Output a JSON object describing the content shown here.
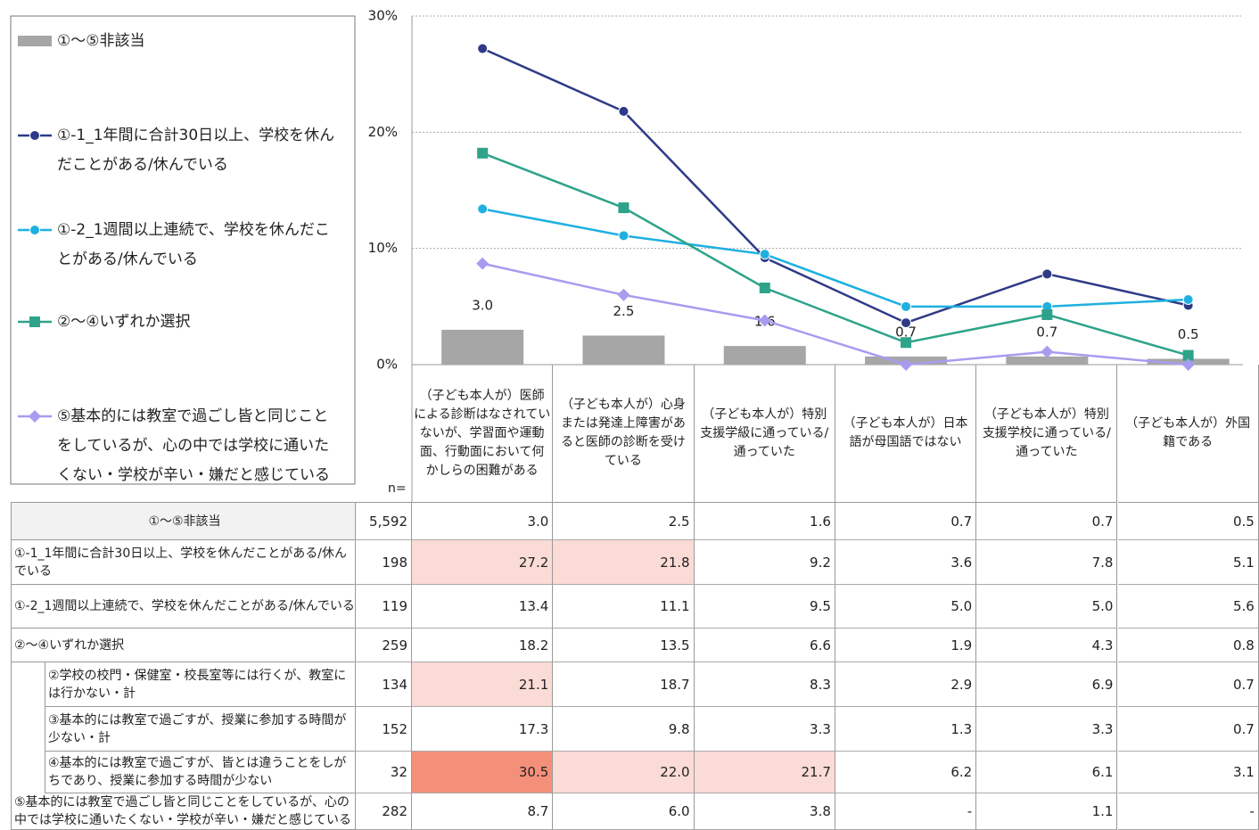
{
  "chart_data": {
    "type": "line",
    "categories": [
      "（子ども本人が）医師による診断はなされていないが、学習面や運動面、行動面において何かしらの困難がある",
      "（子ども本人が）心身または発達上障害があると医師の診断を受けている",
      "（子ども本人が）特別支援学級に通っている/通っていた",
      "（子ども本人が）日本語が母国語ではない",
      "（子ども本人が）特別支援学校に通っている/通っていた",
      "（子ども本人が）外国籍である"
    ],
    "ylim": [
      0,
      30
    ],
    "yticks": [
      {
        "value": 0,
        "label": "0%"
      },
      {
        "value": 10,
        "label": "10%"
      },
      {
        "value": 20,
        "label": "20%"
      },
      {
        "value": 30,
        "label": "30%"
      }
    ],
    "grid": true,
    "series": [
      {
        "name": "①～⑤非該当",
        "type": "bar",
        "color": "#a6a6a6",
        "values": [
          3.0,
          2.5,
          1.6,
          0.7,
          0.7,
          0.5
        ],
        "value_labels": [
          "3.0",
          "2.5",
          "1.6",
          "0.7",
          "0.7",
          "0.5"
        ]
      },
      {
        "name": "①-1_1年間に合計30日以上、学校を休んだことがある/休んでいる",
        "type": "line",
        "marker": "circle",
        "color": "#2e3a87",
        "values": [
          27.2,
          21.8,
          9.2,
          3.6,
          7.8,
          5.1
        ]
      },
      {
        "name": "①-2_1週間以上連続で、学校を休んだことがある/休んでいる",
        "type": "line",
        "marker": "circle",
        "color": "#1fb0e0",
        "values": [
          13.4,
          11.1,
          9.5,
          5.0,
          5.0,
          5.6
        ]
      },
      {
        "name": "②～④いずれか選択",
        "type": "line",
        "marker": "square",
        "color": "#2ea38a",
        "values": [
          18.2,
          13.5,
          6.6,
          1.9,
          4.3,
          0.8
        ]
      },
      {
        "name": "⑤基本的には教室で過ごし皆と同じことをしているが、心の中では学校に通いたくない・学校が辛い・嫌だと感じている",
        "type": "line",
        "marker": "diamond",
        "color": "#a89cf0",
        "values": [
          8.7,
          6.0,
          3.8,
          0,
          1.1,
          0
        ]
      }
    ]
  },
  "table": {
    "n_label": "n=",
    "rows": [
      {
        "label": "①～⑤非該当",
        "n": "5,592",
        "cells": [
          "3.0",
          "2.5",
          "1.6",
          "0.7",
          "0.7",
          "0.5"
        ],
        "colors": [
          null,
          null,
          null,
          null,
          null,
          null
        ]
      },
      {
        "label": "①-1_1年間に合計30日以上、学校を休んだことがある/休んでいる",
        "n": "198",
        "cells": [
          "27.2",
          "21.8",
          "9.2",
          "3.6",
          "7.8",
          "5.1"
        ],
        "colors": [
          "#fadbd5",
          "#fadbd5",
          null,
          null,
          null,
          null
        ]
      },
      {
        "label": "①-2_1週間以上連続で、学校を休んだことがある/休んでいる",
        "n": "119",
        "cells": [
          "13.4",
          "11.1",
          "9.5",
          "5.0",
          "5.0",
          "5.6"
        ],
        "colors": [
          null,
          null,
          null,
          null,
          null,
          null
        ]
      },
      {
        "label": "②～④いずれか選択",
        "n": "259",
        "cells": [
          "18.2",
          "13.5",
          "6.6",
          "1.9",
          "4.3",
          "0.8"
        ],
        "colors": [
          null,
          null,
          null,
          null,
          null,
          null
        ]
      },
      {
        "label": "②学校の校門・保健室・校長室等には行くが、教室には行かない・計",
        "n": "134",
        "indent": true,
        "cells": [
          "21.1",
          "18.7",
          "8.3",
          "2.9",
          "6.9",
          "0.7"
        ],
        "colors": [
          "#fadbd5",
          null,
          null,
          null,
          null,
          null
        ]
      },
      {
        "label": "③基本的には教室で過ごすが、授業に参加する時間が少ない・計",
        "n": "152",
        "indent": true,
        "cells": [
          "17.3",
          "9.8",
          "3.3",
          "1.3",
          "3.3",
          "0.7"
        ],
        "colors": [
          null,
          null,
          null,
          null,
          null,
          null
        ]
      },
      {
        "label": "④基本的には教室で過ごすが、皆とは違うことをしがちであり、授業に参加する時間が少ない",
        "n": "32",
        "indent": true,
        "cells": [
          "30.5",
          "22.0",
          "21.7",
          "6.2",
          "6.1",
          "3.1"
        ],
        "colors": [
          "#f4907a",
          "#fadbd5",
          "#fadbd5",
          null,
          null,
          null
        ]
      },
      {
        "label": "⑤基本的には教室で過ごし皆と同じことをしているが、心の中では学校に通いたくない・学校が辛い・嫌だと感じている",
        "n": "282",
        "cells": [
          "8.7",
          "6.0",
          "3.8",
          "-",
          "1.1",
          "-"
        ],
        "colors": [
          null,
          null,
          null,
          null,
          null,
          null
        ]
      }
    ]
  }
}
